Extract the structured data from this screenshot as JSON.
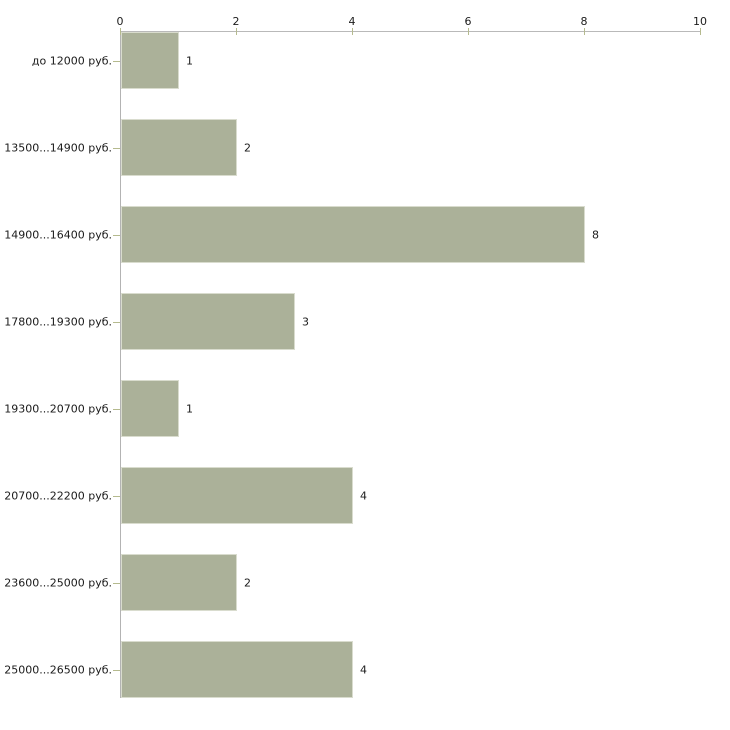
{
  "chart_data": {
    "type": "bar",
    "orientation": "horizontal",
    "title": "",
    "xlabel": "",
    "ylabel": "",
    "xlim": [
      0,
      10
    ],
    "x_ticks": [
      0,
      2,
      4,
      6,
      8,
      10
    ],
    "grid": false,
    "legend": "none",
    "categories": [
      "до 12000 руб.",
      "13500...14900 руб.",
      "14900...16400 руб.",
      "17800...19300 руб.",
      "19300...20700 руб.",
      "20700...22200 руб.",
      "23600...25000 руб.",
      "25000...26500 руб."
    ],
    "values": [
      1,
      2,
      8,
      3,
      1,
      4,
      2,
      4
    ],
    "bar_value_labels": [
      "1",
      "2",
      "8",
      "3",
      "1",
      "4",
      "2",
      "4"
    ],
    "colors": {
      "bar_fill": "#abb199",
      "bar_border": "#d9dcce",
      "axis_line": "#b3b3b3",
      "top_axis_line": "#b9b9b9",
      "tick_mark": "#b5ba8e",
      "text": "#1b1b1b",
      "background": "#ffffff"
    }
  }
}
